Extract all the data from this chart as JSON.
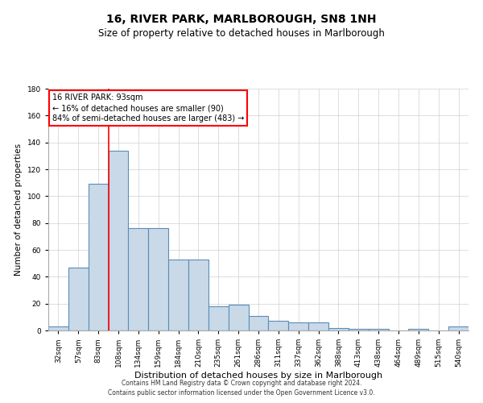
{
  "title": "16, RIVER PARK, MARLBOROUGH, SN8 1NH",
  "subtitle": "Size of property relative to detached houses in Marlborough",
  "xlabel": "Distribution of detached houses by size in Marlborough",
  "ylabel": "Number of detached properties",
  "categories": [
    "32sqm",
    "57sqm",
    "83sqm",
    "108sqm",
    "134sqm",
    "159sqm",
    "184sqm",
    "210sqm",
    "235sqm",
    "261sqm",
    "286sqm",
    "311sqm",
    "337sqm",
    "362sqm",
    "388sqm",
    "413sqm",
    "438sqm",
    "464sqm",
    "489sqm",
    "515sqm",
    "540sqm"
  ],
  "bar_values": [
    3,
    47,
    109,
    134,
    76,
    76,
    53,
    53,
    18,
    19,
    11,
    7,
    6,
    6,
    2,
    1,
    1,
    0,
    1,
    0,
    3
  ],
  "bar_color": "#c9d9e8",
  "bar_edge_color": "#5b8db8",
  "bar_edge_width": 0.8,
  "vline_color": "red",
  "vline_linewidth": 1.2,
  "vline_position": 2.5,
  "annotation_box_text": "16 RIVER PARK: 93sqm\n← 16% of detached houses are smaller (90)\n84% of semi-detached houses are larger (483) →",
  "ylim": [
    0,
    180
  ],
  "yticks": [
    0,
    20,
    40,
    60,
    80,
    100,
    120,
    140,
    160,
    180
  ],
  "footnote1": "Contains HM Land Registry data © Crown copyright and database right 2024.",
  "footnote2": "Contains public sector information licensed under the Open Government Licence v3.0.",
  "title_fontsize": 10,
  "subtitle_fontsize": 8.5,
  "xlabel_fontsize": 8,
  "ylabel_fontsize": 7.5,
  "tick_fontsize": 6.5,
  "annotation_fontsize": 7,
  "footnote_fontsize": 5.5,
  "background_color": "#ffffff",
  "grid_color": "#d0d0d0"
}
